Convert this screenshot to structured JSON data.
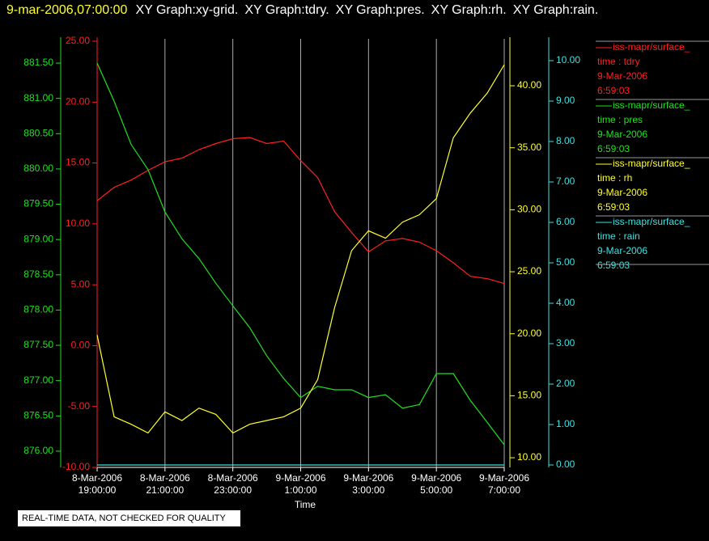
{
  "chart_data": {
    "type": "line",
    "title": "9-mar-2006,07:00:00",
    "subtitles": [
      "XY Graph:xy-grid.",
      "XY Graph:tdry.",
      "XY Graph:pres.",
      "XY Graph:rh.",
      "XY Graph:rain."
    ],
    "xlabel": "Time",
    "note": "REAL-TIME DATA, NOT CHECKED FOR QUALITY",
    "grid": true,
    "x": [
      "2006-03-08T19:00:00",
      "2006-03-08T19:30:00",
      "2006-03-08T20:00:00",
      "2006-03-08T20:30:00",
      "2006-03-08T21:00:00",
      "2006-03-08T21:30:00",
      "2006-03-08T22:00:00",
      "2006-03-08T22:30:00",
      "2006-03-08T23:00:00",
      "2006-03-08T23:30:00",
      "2006-03-09T00:00:00",
      "2006-03-09T00:30:00",
      "2006-03-09T01:00:00",
      "2006-03-09T01:30:00",
      "2006-03-09T02:00:00",
      "2006-03-09T02:30:00",
      "2006-03-09T03:00:00",
      "2006-03-09T03:30:00",
      "2006-03-09T04:00:00",
      "2006-03-09T04:30:00",
      "2006-03-09T05:00:00",
      "2006-03-09T05:30:00",
      "2006-03-09T06:00:00",
      "2006-03-09T06:30:00",
      "2006-03-09T07:00:00"
    ],
    "xlim": [
      "2006-03-08T19:00:00",
      "2006-03-09T07:00:00"
    ],
    "xticks": [
      {
        "value": "2006-03-08T19:00:00",
        "label": [
          "8-Mar-2006",
          "19:00:00"
        ]
      },
      {
        "value": "2006-03-08T21:00:00",
        "label": [
          "8-Mar-2006",
          "21:00:00"
        ]
      },
      {
        "value": "2006-03-08T23:00:00",
        "label": [
          "8-Mar-2006",
          "23:00:00"
        ]
      },
      {
        "value": "2006-03-09T01:00:00",
        "label": [
          "9-Mar-2006",
          "1:00:00"
        ]
      },
      {
        "value": "2006-03-09T03:00:00",
        "label": [
          "9-Mar-2006",
          "3:00:00"
        ]
      },
      {
        "value": "2006-03-09T05:00:00",
        "label": [
          "9-Mar-2006",
          "5:00:00"
        ]
      },
      {
        "value": "2006-03-09T07:00:00",
        "label": [
          "9-Mar-2006",
          "7:00:00"
        ]
      }
    ],
    "axes": [
      {
        "color": "#ff2020",
        "lim": [
          -10,
          25
        ],
        "ticks": [
          {
            "value": -10,
            "label": "-10.00"
          },
          {
            "value": -5,
            "label": "-5.00"
          },
          {
            "value": 0,
            "label": "0.00"
          },
          {
            "value": 5,
            "label": "5.00"
          },
          {
            "value": 10,
            "label": "10.00"
          },
          {
            "value": 15,
            "label": "15.00"
          },
          {
            "value": 20,
            "label": "20.00"
          },
          {
            "value": 25,
            "label": "25.00"
          }
        ]
      },
      {
        "color": "#20e020",
        "lim": [
          875.77,
          881.81
        ],
        "ticks": [
          {
            "value": 876,
            "label": "876.00"
          },
          {
            "value": 876.5,
            "label": "876.50"
          },
          {
            "value": 877,
            "label": "877.00"
          },
          {
            "value": 877.5,
            "label": "877.50"
          },
          {
            "value": 878,
            "label": "878.00"
          },
          {
            "value": 878.5,
            "label": "878.50"
          },
          {
            "value": 879,
            "label": "879.00"
          },
          {
            "value": 879.5,
            "label": "879.50"
          },
          {
            "value": 880,
            "label": "880.00"
          },
          {
            "value": 880.5,
            "label": "880.50"
          },
          {
            "value": 881,
            "label": "881.00"
          },
          {
            "value": 881.5,
            "label": "881.50"
          }
        ]
      },
      {
        "color": "#ffff30",
        "lim": [
          9.22,
          43.59
        ],
        "ticks": [
          {
            "value": 10,
            "label": "10.00"
          },
          {
            "value": 15,
            "label": "15.00"
          },
          {
            "value": 20,
            "label": "20.00"
          },
          {
            "value": 25,
            "label": "25.00"
          },
          {
            "value": 30,
            "label": "30.00"
          },
          {
            "value": 35,
            "label": "35.00"
          },
          {
            "value": 40,
            "label": "40.00"
          }
        ]
      },
      {
        "color": "#40e0e0",
        "lim": [
          -0.06,
          10.48
        ],
        "ticks": [
          {
            "value": 0,
            "label": "0.00"
          },
          {
            "value": 1,
            "label": "1.00"
          },
          {
            "value": 2,
            "label": "2.00"
          },
          {
            "value": 3,
            "label": "3.00"
          },
          {
            "value": 4,
            "label": "4.00"
          },
          {
            "value": 5,
            "label": "5.00"
          },
          {
            "value": 6,
            "label": "6.00"
          },
          {
            "value": 7,
            "label": "7.00"
          },
          {
            "value": 8,
            "label": "8.00"
          },
          {
            "value": 9,
            "label": "9.00"
          },
          {
            "value": 10,
            "label": "10.00"
          }
        ]
      }
    ],
    "series": [
      {
        "name": "iss-mapr/surface_",
        "legend_text": [
          "time : tdry",
          "9-Mar-2006",
          "6:59:03"
        ],
        "color": "#ff2020",
        "axis": 0,
        "values": [
          11.9,
          13.0,
          13.6,
          14.4,
          15.1,
          15.4,
          16.1,
          16.6,
          17.0,
          17.1,
          16.6,
          16.8,
          15.2,
          13.8,
          11.0,
          9.3,
          7.7,
          8.6,
          8.8,
          8.5,
          7.8,
          6.8,
          5.7,
          5.5,
          5.1
        ]
      },
      {
        "name": "iss-mapr/surface_",
        "legend_text": [
          "time : pres",
          "9-Mar-2006",
          "6:59:03"
        ],
        "color": "#20e020",
        "axis": 1,
        "values": [
          881.5,
          880.96,
          880.35,
          879.99,
          879.39,
          879.01,
          878.73,
          878.38,
          878.06,
          877.75,
          877.35,
          877.03,
          876.76,
          876.92,
          876.87,
          876.87,
          876.76,
          876.8,
          876.61,
          876.66,
          877.1,
          877.1,
          876.72,
          876.41,
          876.09
        ]
      },
      {
        "name": "iss-mapr/surface_",
        "legend_text": [
          "time : rh",
          "9-Mar-2006",
          "6:59:03"
        ],
        "color": "#ffff30",
        "axis": 2,
        "values": [
          19.9,
          13.3,
          12.7,
          12.0,
          13.7,
          13.0,
          14.0,
          13.5,
          12.0,
          12.7,
          13.0,
          13.3,
          14.0,
          16.3,
          22.1,
          26.7,
          28.3,
          27.7,
          29.0,
          29.6,
          30.9,
          35.8,
          37.8,
          39.4,
          41.7
        ]
      },
      {
        "name": "iss-mapr/surface_",
        "legend_text": [
          "time : rain",
          "9-Mar-2006",
          "6:59:03"
        ],
        "color": "#40e0e0",
        "axis": 3,
        "values": [
          0,
          0,
          0,
          0,
          0,
          0,
          0,
          0,
          0,
          0,
          0,
          0,
          0,
          0,
          0,
          0,
          0,
          0,
          0,
          0,
          0,
          0,
          0,
          0,
          0
        ]
      }
    ]
  }
}
